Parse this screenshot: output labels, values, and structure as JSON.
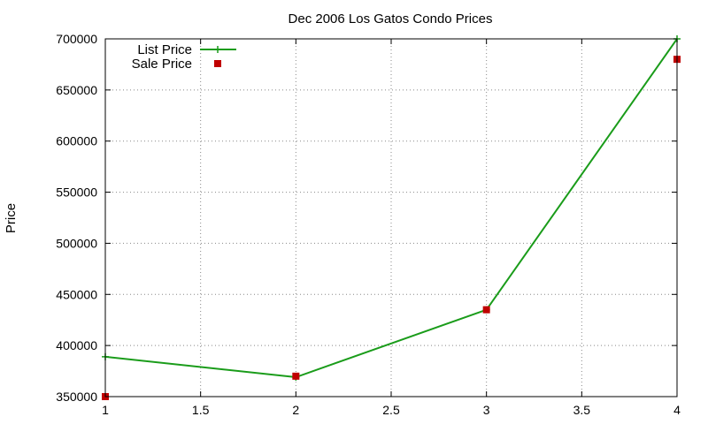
{
  "chart_data": {
    "type": "line",
    "title": "Dec 2006 Los Gatos Condo Prices",
    "xlabel": "",
    "ylabel": "Price",
    "xlim": [
      1,
      4
    ],
    "ylim": [
      350000,
      700000
    ],
    "xticks": [
      1,
      1.5,
      2,
      2.5,
      3,
      3.5,
      4
    ],
    "yticks": [
      350000,
      400000,
      450000,
      500000,
      550000,
      600000,
      650000,
      700000
    ],
    "grid": true,
    "legend_position": "top-left",
    "series": [
      {
        "name": "List Price",
        "style": "lines+points",
        "color": "#1a9c1a",
        "points": [
          {
            "x": 1,
            "y": 389000
          },
          {
            "x": 2,
            "y": 369000
          },
          {
            "x": 3,
            "y": 435000
          },
          {
            "x": 4,
            "y": 700000
          }
        ]
      },
      {
        "name": "Sale Price",
        "style": "points",
        "color": "#c00000",
        "points": [
          {
            "x": 1,
            "y": 350000
          },
          {
            "x": 2,
            "y": 370000
          },
          {
            "x": 3,
            "y": 435000
          },
          {
            "x": 4,
            "y": 680000
          }
        ]
      }
    ]
  }
}
